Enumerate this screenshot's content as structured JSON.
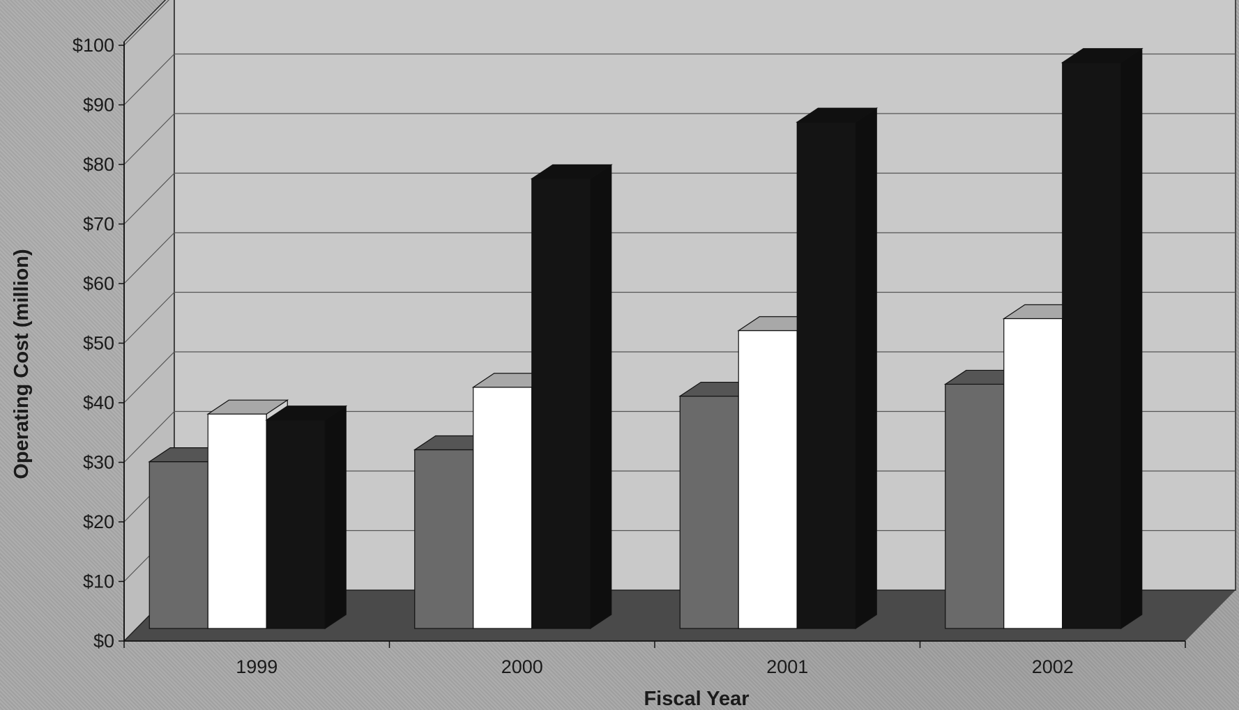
{
  "chart_data": {
    "type": "bar",
    "title": "",
    "xlabel": "Fiscal Year",
    "ylabel": "Operating Cost (million)",
    "categories": [
      "1999",
      "2000",
      "2001",
      "2002"
    ],
    "series": [
      {
        "color": "#6a6a6a",
        "values": [
          28,
          30,
          39,
          41
        ]
      },
      {
        "color": "#ffffff",
        "values": [
          36,
          40.5,
          50,
          52
        ]
      },
      {
        "color": "#141414",
        "values": [
          35,
          75.5,
          85,
          95
        ]
      }
    ],
    "ylim": [
      0,
      100
    ],
    "yticks": [
      "$0",
      "$10",
      "$20",
      "$30",
      "$40",
      "$50",
      "$60",
      "$70",
      "$80",
      "$90",
      "$100"
    ],
    "grid": true,
    "legend": "none",
    "style": "3d-clustered-column"
  }
}
